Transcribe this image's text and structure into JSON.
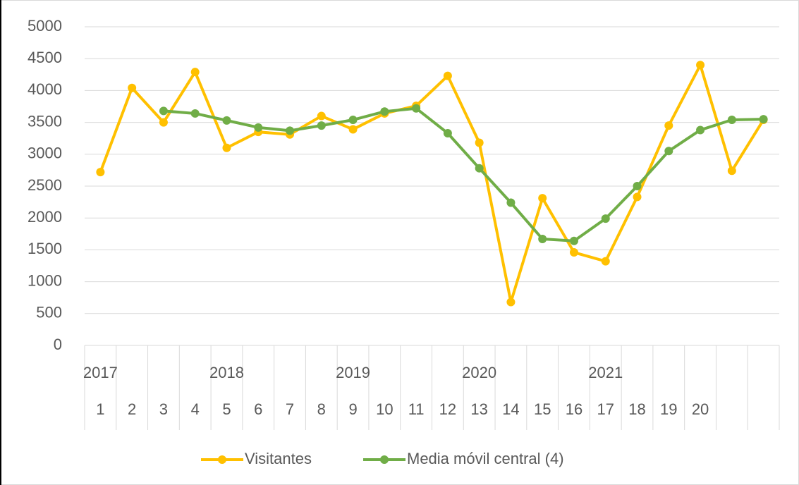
{
  "chart_data": {
    "type": "line",
    "categories": [
      "1",
      "2",
      "3",
      "4",
      "5",
      "6",
      "7",
      "8",
      "9",
      "10",
      "11",
      "12",
      "13",
      "14",
      "15",
      "16",
      "17",
      "18",
      "19",
      "20",
      null,
      null
    ],
    "outer_categories": [
      "2017",
      null,
      null,
      null,
      "2018",
      null,
      null,
      null,
      "2019",
      null,
      null,
      null,
      "2020",
      null,
      null,
      null,
      "2021",
      null,
      null,
      null,
      null,
      null
    ],
    "series": [
      {
        "name": "Visitantes",
        "color": "#ffc000",
        "values": [
          2720,
          4040,
          3500,
          4290,
          3100,
          3350,
          3310,
          3600,
          3390,
          3640,
          3760,
          4230,
          3180,
          680,
          2310,
          1460,
          1320,
          2330,
          3450,
          4400,
          2740,
          3540
        ]
      },
      {
        "name": "Media móvil central (4)",
        "color": "#70ad47",
        "values": [
          null,
          null,
          3680,
          3640,
          3530,
          3420,
          3370,
          3450,
          3540,
          3670,
          3720,
          3330,
          2780,
          2240,
          1670,
          1640,
          1990,
          2500,
          3050,
          3380,
          3540,
          3550
        ]
      }
    ],
    "ylim": [
      0,
      5000
    ],
    "yticks": [
      0,
      500,
      1000,
      1500,
      2000,
      2500,
      3000,
      3500,
      4000,
      4500,
      5000
    ],
    "grid": true,
    "legend": "bottom"
  }
}
